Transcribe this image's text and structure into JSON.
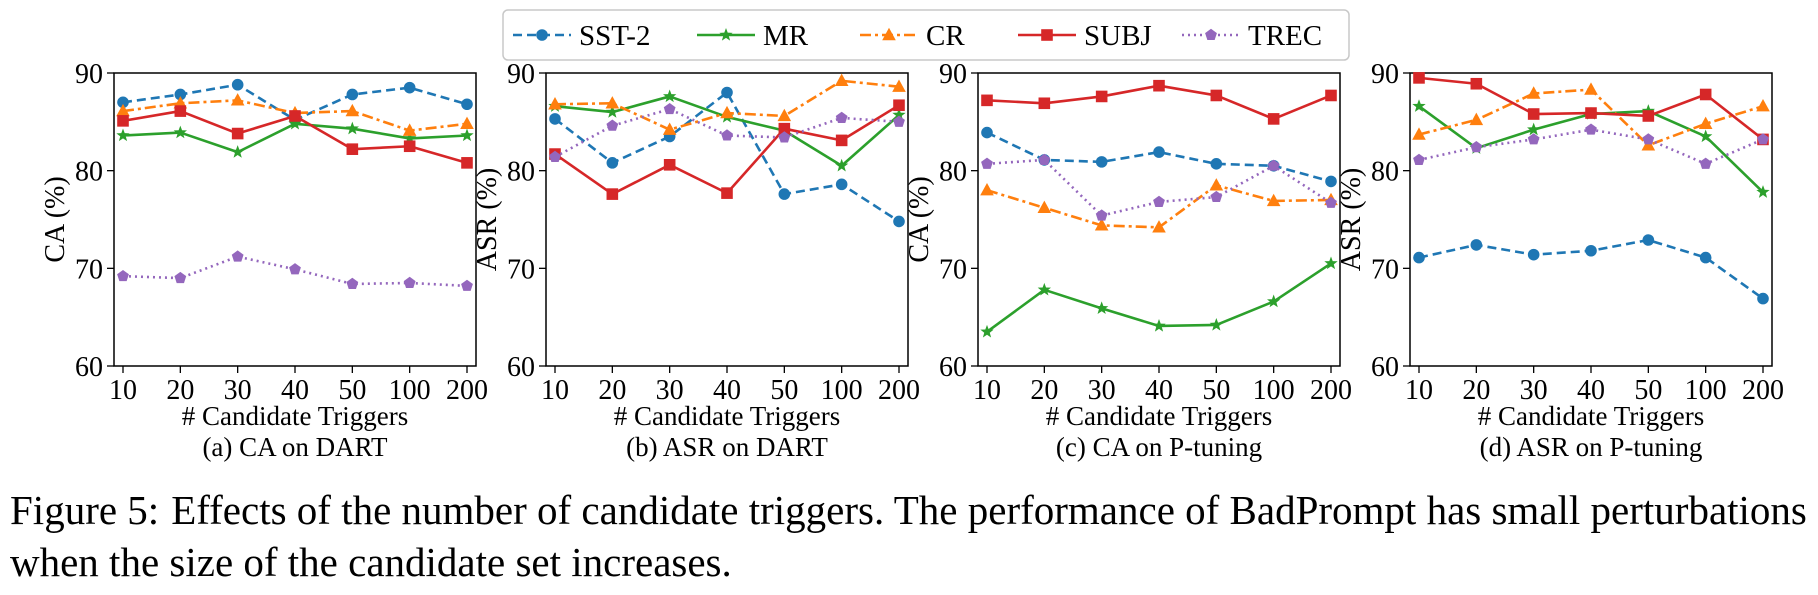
{
  "legend": [
    {
      "name": "SST-2",
      "color": "#1f77b4",
      "dash": "dashed",
      "marker": "circle"
    },
    {
      "name": "MR",
      "color": "#2ca02c",
      "dash": "solid",
      "marker": "star"
    },
    {
      "name": "CR",
      "color": "#ff7f0e",
      "dash": "dashdot",
      "marker": "triangle"
    },
    {
      "name": "SUBJ",
      "color": "#d62728",
      "dash": "solid",
      "marker": "square"
    },
    {
      "name": "TREC",
      "color": "#9467bd",
      "dash": "dotted",
      "marker": "pentagon"
    }
  ],
  "chart_data": [
    {
      "type": "line",
      "title": "(a) CA on DART",
      "xlabel": "# Candidate Triggers",
      "ylabel": "CA (%)",
      "categories": [
        "10",
        "20",
        "30",
        "40",
        "50",
        "100",
        "200"
      ],
      "ylim": [
        60,
        90
      ],
      "yticks": [
        "60",
        "70",
        "80",
        "90"
      ],
      "series": [
        {
          "name": "SST-2",
          "values": [
            87.0,
            87.8,
            88.8,
            85.2,
            87.8,
            88.5,
            86.8
          ]
        },
        {
          "name": "MR",
          "values": [
            83.6,
            83.9,
            81.9,
            84.8,
            84.3,
            83.3,
            83.6
          ]
        },
        {
          "name": "CR",
          "values": [
            86.1,
            86.9,
            87.2,
            85.9,
            86.1,
            84.1,
            84.8
          ]
        },
        {
          "name": "SUBJ",
          "values": [
            85.1,
            86.1,
            83.8,
            85.6,
            82.2,
            82.5,
            80.8
          ]
        },
        {
          "name": "TREC",
          "values": [
            69.2,
            69.0,
            71.2,
            69.9,
            68.4,
            68.5,
            68.2
          ]
        }
      ]
    },
    {
      "type": "line",
      "title": "(b) ASR on DART",
      "xlabel": "# Candidate Triggers",
      "ylabel": "ASR (%)",
      "categories": [
        "10",
        "20",
        "30",
        "40",
        "50",
        "100",
        "200"
      ],
      "ylim": [
        60,
        90
      ],
      "yticks": [
        "60",
        "70",
        "80",
        "90"
      ],
      "series": [
        {
          "name": "SST-2",
          "values": [
            85.3,
            80.8,
            83.5,
            88.0,
            77.6,
            78.6,
            74.8
          ]
        },
        {
          "name": "MR",
          "values": [
            86.6,
            86.0,
            87.6,
            85.5,
            84.1,
            80.5,
            85.7
          ]
        },
        {
          "name": "CR",
          "values": [
            86.8,
            86.9,
            84.2,
            85.9,
            85.6,
            89.2,
            88.6
          ]
        },
        {
          "name": "SUBJ",
          "values": [
            81.7,
            77.6,
            80.6,
            77.7,
            84.3,
            83.1,
            86.7
          ]
        },
        {
          "name": "TREC",
          "values": [
            81.4,
            84.6,
            86.3,
            83.6,
            83.4,
            85.4,
            85.0
          ]
        }
      ]
    },
    {
      "type": "line",
      "title": "(c) CA on P-tuning",
      "xlabel": "# Candidate Triggers",
      "ylabel": "CA (%)",
      "categories": [
        "10",
        "20",
        "30",
        "40",
        "50",
        "100",
        "200"
      ],
      "ylim": [
        60,
        90
      ],
      "yticks": [
        "60",
        "70",
        "80",
        "90"
      ],
      "series": [
        {
          "name": "SST-2",
          "values": [
            83.9,
            81.1,
            80.9,
            81.9,
            80.7,
            80.5,
            78.9
          ]
        },
        {
          "name": "MR",
          "values": [
            63.5,
            67.8,
            65.9,
            64.1,
            64.2,
            66.6,
            70.5
          ]
        },
        {
          "name": "CR",
          "values": [
            78.0,
            76.2,
            74.4,
            74.2,
            78.5,
            76.9,
            77.0
          ]
        },
        {
          "name": "SUBJ",
          "values": [
            87.2,
            86.9,
            87.6,
            88.7,
            87.7,
            85.3,
            87.7
          ]
        },
        {
          "name": "TREC",
          "values": [
            80.7,
            81.1,
            75.4,
            76.8,
            77.3,
            80.5,
            76.7
          ]
        }
      ]
    },
    {
      "type": "line",
      "title": "(d) ASR on P-tuning",
      "xlabel": "# Candidate Triggers",
      "ylabel": "ASR (%)",
      "categories": [
        "10",
        "20",
        "30",
        "40",
        "50",
        "100",
        "200"
      ],
      "ylim": [
        60,
        90
      ],
      "yticks": [
        "60",
        "70",
        "80",
        "90"
      ],
      "series": [
        {
          "name": "SST-2",
          "values": [
            71.1,
            72.4,
            71.4,
            71.8,
            72.9,
            71.1,
            66.9
          ]
        },
        {
          "name": "MR",
          "values": [
            86.6,
            82.3,
            84.2,
            85.8,
            86.1,
            83.5,
            77.8
          ]
        },
        {
          "name": "CR",
          "values": [
            83.7,
            85.2,
            87.9,
            88.3,
            82.6,
            84.8,
            86.6
          ]
        },
        {
          "name": "SUBJ",
          "values": [
            89.5,
            88.9,
            85.8,
            85.9,
            85.6,
            87.8,
            83.2
          ]
        },
        {
          "name": "TREC",
          "values": [
            81.1,
            82.4,
            83.2,
            84.2,
            83.2,
            80.7,
            83.2
          ]
        }
      ]
    }
  ],
  "caption": {
    "label": "Figure 5:",
    "text": "Effects of the number of candidate triggers. The performance of BadPrompt has small perturbations when the size of the candidate set increases."
  }
}
